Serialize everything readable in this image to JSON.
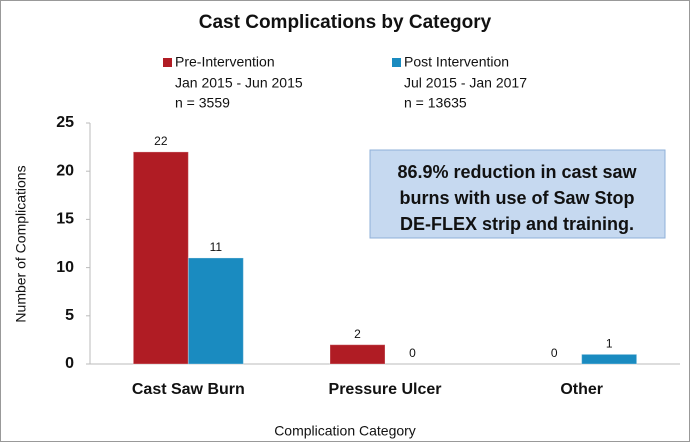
{
  "chart_data": {
    "type": "bar",
    "title": "Cast Complications by Category",
    "x_label": "Complication Category",
    "y_label": "Number of Complications",
    "categories": [
      "Cast Saw Burn",
      "Pressure Ulcer",
      "Other"
    ],
    "series": [
      {
        "name": "Pre-Intervention",
        "period": "Jan 2015 - Jun 2015",
        "sample": "n = 3559",
        "color": "#b01c24",
        "values": [
          22,
          2,
          0
        ]
      },
      {
        "name": "Post Intervention",
        "period": "Jul 2015 - Jan 2017",
        "sample": "n = 13635",
        "color": "#1a8bc0",
        "values": [
          11,
          0,
          1
        ]
      }
    ],
    "ylim": [
      0,
      25
    ],
    "yticks": [
      0,
      5,
      10,
      15,
      20,
      25
    ],
    "grid": false,
    "annotation": [
      "86.9% reduction in cast saw",
      "burns with use of Saw Stop",
      "DE-FLEX strip and training."
    ]
  }
}
